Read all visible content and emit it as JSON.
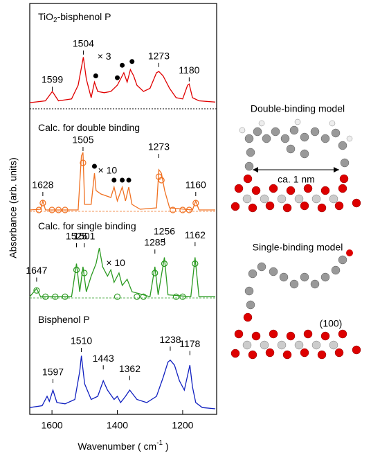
{
  "figure": {
    "y_label": "Absorbance (arb. units)",
    "x_label": "Wavenumber ( cm",
    "x_label_sup": "-1",
    "x_label_end": " )"
  },
  "chart_data": [
    {
      "type": "line",
      "title": "TiO",
      "title_sub": "2",
      "title_end": "-bisphenol P",
      "color": "#e00000",
      "xlim": [
        1668,
        1096
      ],
      "ylim": [
        0,
        1
      ],
      "x": [
        1668,
        1620,
        1599,
        1580,
        1540,
        1520,
        1504,
        1495,
        1480,
        1470,
        1460,
        1440,
        1420,
        1400,
        1390,
        1380,
        1370,
        1360,
        1350,
        1340,
        1320,
        1300,
        1280,
        1273,
        1260,
        1240,
        1220,
        1200,
        1185,
        1180,
        1170,
        1150,
        1100
      ],
      "values": [
        0.02,
        0.05,
        0.2,
        0.05,
        0.08,
        0.3,
        0.75,
        0.4,
        0.1,
        0.35,
        0.2,
        0.18,
        0.2,
        0.3,
        0.4,
        0.5,
        0.35,
        0.55,
        0.45,
        0.3,
        0.2,
        0.25,
        0.5,
        0.52,
        0.45,
        0.25,
        0.1,
        0.08,
        0.3,
        0.32,
        0.1,
        0.05,
        0.03
      ],
      "dots": {
        "x": [
          1466,
          1400,
          1385,
          1355
        ],
        "values": [
          0.45,
          0.42,
          0.62,
          0.68
        ]
      },
      "peaks": [
        {
          "x": 1599,
          "y": 0.3
        },
        {
          "x": 1504,
          "y": 0.88
        },
        {
          "x": 1273,
          "y": 0.68
        },
        {
          "x": 1180,
          "y": 0.45
        }
      ],
      "annotations": [
        {
          "text": "× 3",
          "x": 1440,
          "y": 0.75
        }
      ]
    },
    {
      "type": "line",
      "title": "Calc. for double binding",
      "color": "#f07020",
      "xlim": [
        1668,
        1096
      ],
      "ylim": [
        0,
        1
      ],
      "x": [
        1668,
        1635,
        1628,
        1620,
        1520,
        1510,
        1505,
        1500,
        1480,
        1470,
        1465,
        1450,
        1420,
        1410,
        1400,
        1385,
        1375,
        1365,
        1355,
        1330,
        1280,
        1273,
        1265,
        1255,
        1240,
        1170,
        1160,
        1150,
        1100
      ],
      "values": [
        0.02,
        0.03,
        0.15,
        0.02,
        0.02,
        0.8,
        0.85,
        0.1,
        0.1,
        0.55,
        0.3,
        0.25,
        0.2,
        0.35,
        0.15,
        0.35,
        0.15,
        0.35,
        0.1,
        0.03,
        0.05,
        0.6,
        0.55,
        0.3,
        0.05,
        0.02,
        0.15,
        0.02,
        0.02
      ],
      "circles": {
        "x": [
          1640,
          1628,
          1600,
          1580,
          1560,
          1505,
          1273,
          1265,
          1230,
          1200,
          1180,
          1160
        ],
        "values": [
          0.02,
          0.12,
          0.02,
          0.02,
          0.02,
          0.7,
          0.5,
          0.45,
          0.02,
          0.02,
          0.02,
          0.12
        ]
      },
      "dots": {
        "x": [
          1470,
          1410,
          1385,
          1365
        ],
        "values": [
          0.65,
          0.45,
          0.45,
          0.45
        ]
      },
      "peaks": [
        {
          "x": 1628,
          "y": 0.3
        },
        {
          "x": 1505,
          "y": 0.95
        },
        {
          "x": 1273,
          "y": 0.85
        },
        {
          "x": 1160,
          "y": 0.3
        }
      ],
      "annotations": [
        {
          "text": "× 10",
          "x": 1430,
          "y": 0.58
        }
      ]
    },
    {
      "type": "line",
      "title": "Calc. for single binding",
      "color": "#2a9a20",
      "xlim": [
        1668,
        1096
      ],
      "ylim": [
        0,
        1
      ],
      "x": [
        1668,
        1647,
        1635,
        1540,
        1525,
        1515,
        1505,
        1495,
        1480,
        1465,
        1455,
        1445,
        1430,
        1420,
        1410,
        1395,
        1385,
        1370,
        1355,
        1300,
        1285,
        1275,
        1256,
        1245,
        1175,
        1162,
        1150,
        1100
      ],
      "values": [
        0.02,
        0.15,
        0.02,
        0.02,
        0.55,
        0.1,
        0.5,
        0.1,
        0.35,
        0.55,
        0.8,
        0.5,
        0.35,
        0.45,
        0.25,
        0.4,
        0.2,
        0.3,
        0.1,
        0.02,
        0.5,
        0.05,
        0.65,
        0.05,
        0.02,
        0.65,
        0.02,
        0.02
      ],
      "circles": {
        "x": [
          1647,
          1620,
          1590,
          1560,
          1525,
          1501,
          1400,
          1340,
          1320,
          1285,
          1256,
          1220,
          1200,
          1162
        ],
        "values": [
          0.12,
          0.02,
          0.02,
          0.02,
          0.45,
          0.4,
          0.02,
          0.02,
          0.02,
          0.4,
          0.55,
          0.02,
          0.02,
          0.55
        ]
      },
      "peaks": [
        {
          "x": 1647,
          "y": 0.35
        },
        {
          "x": 1525,
          "y": 0.9
        },
        {
          "x": 1501,
          "y": 0.9
        },
        {
          "x": 1285,
          "y": 0.8
        },
        {
          "x": 1256,
          "y": 0.98
        },
        {
          "x": 1162,
          "y": 0.92
        }
      ],
      "annotations": [
        {
          "text": "× 10",
          "x": 1405,
          "y": 0.55
        }
      ]
    },
    {
      "type": "line",
      "title": "Bisphenol P",
      "color": "#1020c0",
      "xlim": [
        1668,
        1096
      ],
      "ylim": [
        0,
        1
      ],
      "xticks": [
        1600,
        1400,
        1200
      ],
      "x": [
        1668,
        1630,
        1615,
        1608,
        1597,
        1585,
        1560,
        1530,
        1515,
        1510,
        1500,
        1480,
        1460,
        1443,
        1430,
        1410,
        1400,
        1390,
        1375,
        1362,
        1340,
        1310,
        1280,
        1260,
        1245,
        1238,
        1225,
        1210,
        1195,
        1178,
        1170,
        1160,
        1140,
        1100
      ],
      "values": [
        0.02,
        0.05,
        0.2,
        0.12,
        0.3,
        0.1,
        0.08,
        0.15,
        0.6,
        0.85,
        0.4,
        0.15,
        0.2,
        0.45,
        0.3,
        0.15,
        0.2,
        0.1,
        0.2,
        0.3,
        0.15,
        0.1,
        0.2,
        0.5,
        0.75,
        0.78,
        0.7,
        0.45,
        0.3,
        0.7,
        0.35,
        0.1,
        0.02,
        0.0
      ],
      "peaks": [
        {
          "x": 1597,
          "y": 0.5
        },
        {
          "x": 1510,
          "y": 1.0
        },
        {
          "x": 1443,
          "y": 0.72
        },
        {
          "x": 1362,
          "y": 0.55
        },
        {
          "x": 1238,
          "y": 1.02
        },
        {
          "x": 1178,
          "y": 0.95
        }
      ]
    }
  ],
  "models": [
    {
      "title": "Double-binding model",
      "annotation": "ca. 1 nm"
    },
    {
      "title": "Single-binding model",
      "annotation": "(100)"
    }
  ]
}
